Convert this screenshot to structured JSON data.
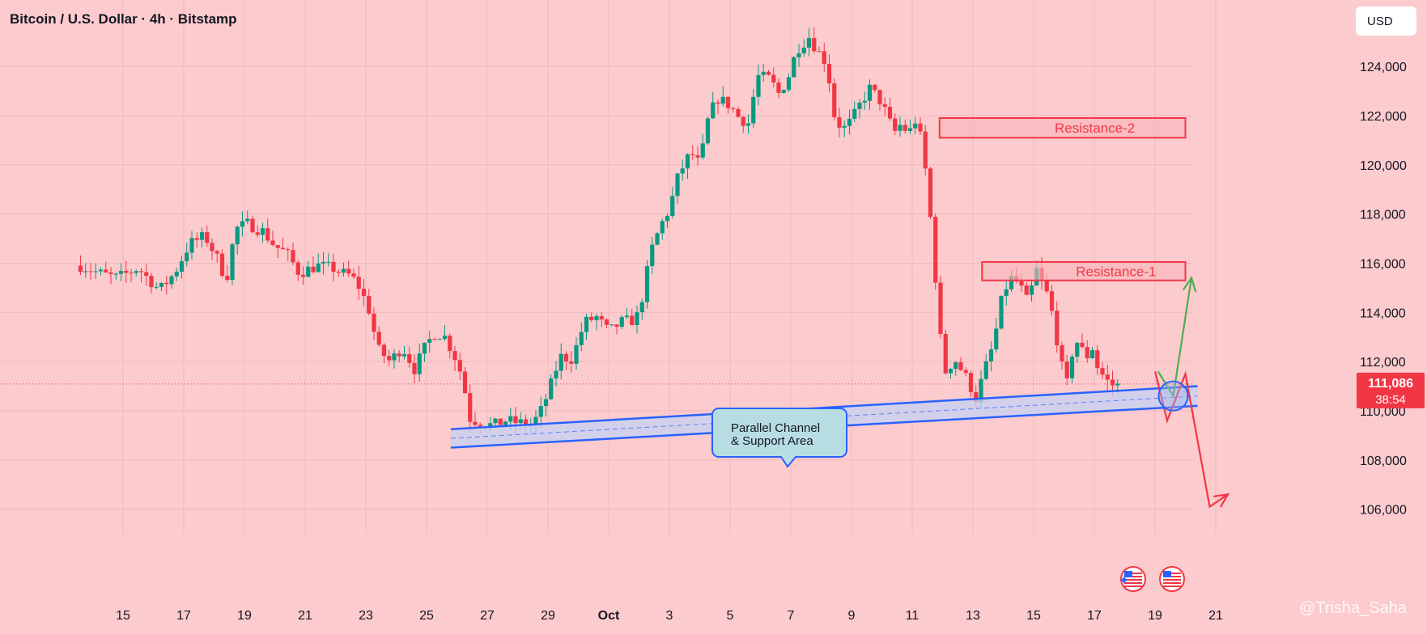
{
  "chart_data": {
    "type": "candlestick",
    "title": "Bitcoin / U.S. Dollar · 4h · Bitstamp",
    "currency": "USD",
    "ylim": [
      105000,
      126700
    ],
    "y_ticks": [
      106000,
      108000,
      110000,
      112000,
      114000,
      116000,
      118000,
      120000,
      122000,
      124000
    ],
    "y_tick_labels": [
      "106,000",
      "108,000",
      "110,000",
      "112,000",
      "114,000",
      "116,000",
      "118,000",
      "120,000",
      "122,000",
      "124,000"
    ],
    "x_ticks": [
      {
        "label": "15",
        "day": -16
      },
      {
        "label": "17",
        "day": -14
      },
      {
        "label": "19",
        "day": -12
      },
      {
        "label": "21",
        "day": -10
      },
      {
        "label": "23",
        "day": -8
      },
      {
        "label": "25",
        "day": -6
      },
      {
        "label": "27",
        "day": -4
      },
      {
        "label": "29",
        "day": -2
      },
      {
        "label": "Oct",
        "day": 0
      },
      {
        "label": "3",
        "day": 2
      },
      {
        "label": "5",
        "day": 4
      },
      {
        "label": "7",
        "day": 6
      },
      {
        "label": "9",
        "day": 8
      },
      {
        "label": "11",
        "day": 10
      },
      {
        "label": "13",
        "day": 12
      },
      {
        "label": "15",
        "day": 14
      },
      {
        "label": "17",
        "day": 16
      },
      {
        "label": "19",
        "day": 18
      },
      {
        "label": "21",
        "day": 20
      }
    ],
    "current_price": "111,086",
    "current_price_value": 111086,
    "countdown": "38:54",
    "grid": true,
    "colors": {
      "up": "#089981",
      "down": "#f23645",
      "background": "#fccbcd",
      "support": "#2962ff",
      "resistance": "#f23645",
      "bullish_arrow": "#4caf50"
    },
    "close_path": [
      [
        -17.4,
        115900
      ],
      [
        -16.8,
        115600
      ],
      [
        -16.2,
        115400
      ],
      [
        -15.5,
        115800
      ],
      [
        -14.8,
        114900
      ],
      [
        -14.3,
        115600
      ],
      [
        -13.8,
        116800
      ],
      [
        -13.3,
        117100
      ],
      [
        -12.9,
        116200
      ],
      [
        -12.6,
        115300
      ],
      [
        -12.3,
        117400
      ],
      [
        -11.9,
        117600
      ],
      [
        -11.4,
        117300
      ],
      [
        -11.0,
        116700
      ],
      [
        -10.6,
        116400
      ],
      [
        -10.2,
        115600
      ],
      [
        -9.6,
        115900
      ],
      [
        -9.1,
        115800
      ],
      [
        -8.8,
        115600
      ],
      [
        -8.5,
        115500
      ],
      [
        -8.2,
        115000
      ],
      [
        -7.9,
        114100
      ],
      [
        -7.6,
        112500
      ],
      [
        -7.2,
        112000
      ],
      [
        -6.8,
        112600
      ],
      [
        -6.4,
        111700
      ],
      [
        -6.0,
        112700
      ],
      [
        -5.7,
        113200
      ],
      [
        -5.4,
        113000
      ],
      [
        -5.1,
        112300
      ],
      [
        -4.8,
        111300
      ],
      [
        -4.6,
        109700
      ],
      [
        -4.2,
        109500
      ],
      [
        -3.8,
        109400
      ],
      [
        -3.4,
        109600
      ],
      [
        -2.9,
        109500
      ],
      [
        -2.6,
        109400
      ],
      [
        -2.3,
        109800
      ],
      [
        -2.0,
        110700
      ],
      [
        -1.6,
        112200
      ],
      [
        -1.2,
        112100
      ],
      [
        -0.8,
        113600
      ],
      [
        -0.4,
        113800
      ],
      [
        0.0,
        113200
      ],
      [
        0.4,
        113600
      ],
      [
        0.9,
        113700
      ],
      [
        1.1,
        114600
      ],
      [
        1.4,
        116500
      ],
      [
        1.7,
        117500
      ],
      [
        2.0,
        118200
      ],
      [
        2.3,
        119600
      ],
      [
        2.7,
        120500
      ],
      [
        3.0,
        120000
      ],
      [
        3.3,
        122000
      ],
      [
        3.6,
        122700
      ],
      [
        4.0,
        122400
      ],
      [
        4.3,
        121900
      ],
      [
        4.6,
        121700
      ],
      [
        4.9,
        123600
      ],
      [
        5.3,
        123500
      ],
      [
        5.6,
        122900
      ],
      [
        5.9,
        123500
      ],
      [
        6.2,
        124700
      ],
      [
        6.6,
        125200
      ],
      [
        6.9,
        124600
      ],
      [
        7.2,
        124100
      ],
      [
        7.4,
        122100
      ],
      [
        7.7,
        121400
      ],
      [
        8.0,
        121800
      ],
      [
        8.3,
        122500
      ],
      [
        8.6,
        123100
      ],
      [
        8.9,
        122700
      ],
      [
        9.1,
        122200
      ],
      [
        9.4,
        121300
      ],
      [
        9.6,
        121600
      ],
      [
        9.9,
        121300
      ],
      [
        10.1,
        121800
      ],
      [
        10.3,
        121000
      ],
      [
        10.5,
        119200
      ],
      [
        10.7,
        116500
      ],
      [
        10.9,
        113200
      ],
      [
        11.1,
        111600
      ],
      [
        11.4,
        112100
      ],
      [
        11.8,
        111300
      ],
      [
        12.1,
        110500
      ],
      [
        12.4,
        111700
      ],
      [
        12.7,
        112800
      ],
      [
        12.9,
        114300
      ],
      [
        13.2,
        115400
      ],
      [
        13.5,
        115200
      ],
      [
        13.8,
        114400
      ],
      [
        14.1,
        115700
      ],
      [
        14.3,
        115100
      ],
      [
        14.5,
        114600
      ],
      [
        14.7,
        113400
      ],
      [
        14.9,
        111900
      ],
      [
        15.1,
        111100
      ],
      [
        15.3,
        112600
      ],
      [
        15.5,
        112900
      ],
      [
        15.7,
        112000
      ],
      [
        15.9,
        112700
      ],
      [
        16.1,
        111800
      ],
      [
        16.3,
        111400
      ],
      [
        16.5,
        111100
      ],
      [
        16.7,
        111000
      ],
      [
        16.9,
        111086
      ]
    ],
    "annotations": {
      "resistance_2": {
        "label": "Resistance-2",
        "top": 121900,
        "bottom": 121100,
        "day_start": 10.9,
        "day_end": 19.0
      },
      "resistance_1": {
        "label": "Resistance-1",
        "top": 116050,
        "bottom": 115300,
        "day_start": 12.3,
        "day_end": 19.0
      },
      "channel": {
        "label_line1": "Parallel Channel",
        "label_line2": "& Support Area",
        "day_start": -5.2,
        "day_end": 19.4,
        "upper_start": 109250,
        "upper_end": 111000,
        "lower_start": 108500,
        "lower_end": 110200
      },
      "bullish_path": [
        [
          18.1,
          111600
        ],
        [
          18.6,
          110600
        ],
        [
          19.2,
          115400
        ]
      ],
      "bearish_path": [
        [
          18.0,
          111600
        ],
        [
          18.4,
          109600
        ],
        [
          19.0,
          111500
        ],
        [
          19.8,
          106100
        ],
        [
          20.4,
          106600
        ]
      ],
      "focus_point": {
        "day": 18.6,
        "price": 110600
      }
    },
    "watermark": "@Trisha_Saha"
  }
}
